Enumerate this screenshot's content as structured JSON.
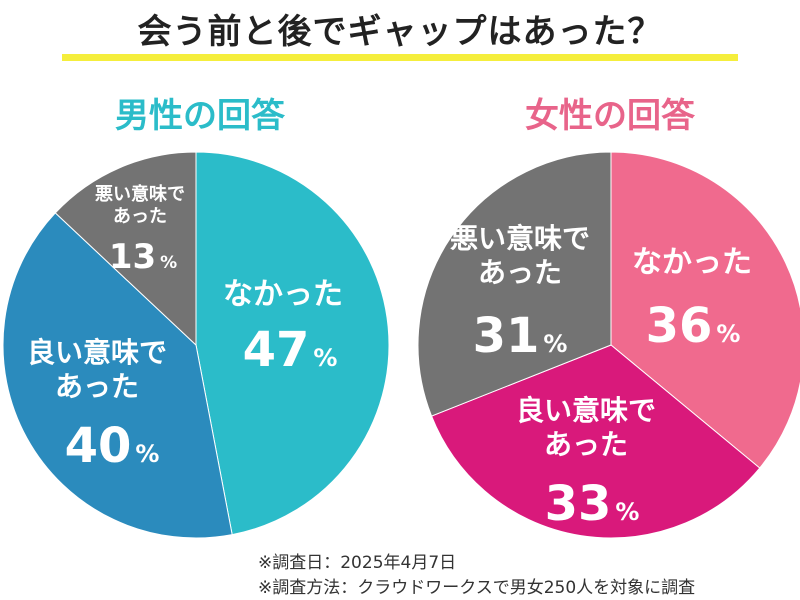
{
  "title": "会う前と後でギャップはあった？",
  "chart_data": [
    {
      "type": "pie",
      "title": "男性の回答",
      "slices": [
        {
          "label": [
            "なかった"
          ],
          "value": 47,
          "display": "47",
          "unit": "%",
          "color": "#2bbcc9"
        },
        {
          "label": [
            "良い意味で",
            "あった"
          ],
          "value": 40,
          "display": "40",
          "unit": "%",
          "color": "#2b8bbd"
        },
        {
          "label": [
            "悪い意味で",
            "あった"
          ],
          "value": 13,
          "display": "13",
          "unit": "%",
          "color": "#737373"
        }
      ]
    },
    {
      "type": "pie",
      "title": "女性の回答",
      "slices": [
        {
          "label": [
            "なかった"
          ],
          "value": 36,
          "display": "36",
          "unit": "%",
          "color": "#f06a8e"
        },
        {
          "label": [
            "良い意味で",
            "あった"
          ],
          "value": 33,
          "display": "33",
          "unit": "%",
          "color": "#d9197b"
        },
        {
          "label": [
            "悪い意味で",
            "あった"
          ],
          "value": 31,
          "display": "31",
          "unit": "%",
          "color": "#737373"
        }
      ]
    }
  ],
  "notes": [
    "※調査日：2025年4月7日",
    "※調査方法：クラウドワークスで男女250人を対象に調査"
  ]
}
